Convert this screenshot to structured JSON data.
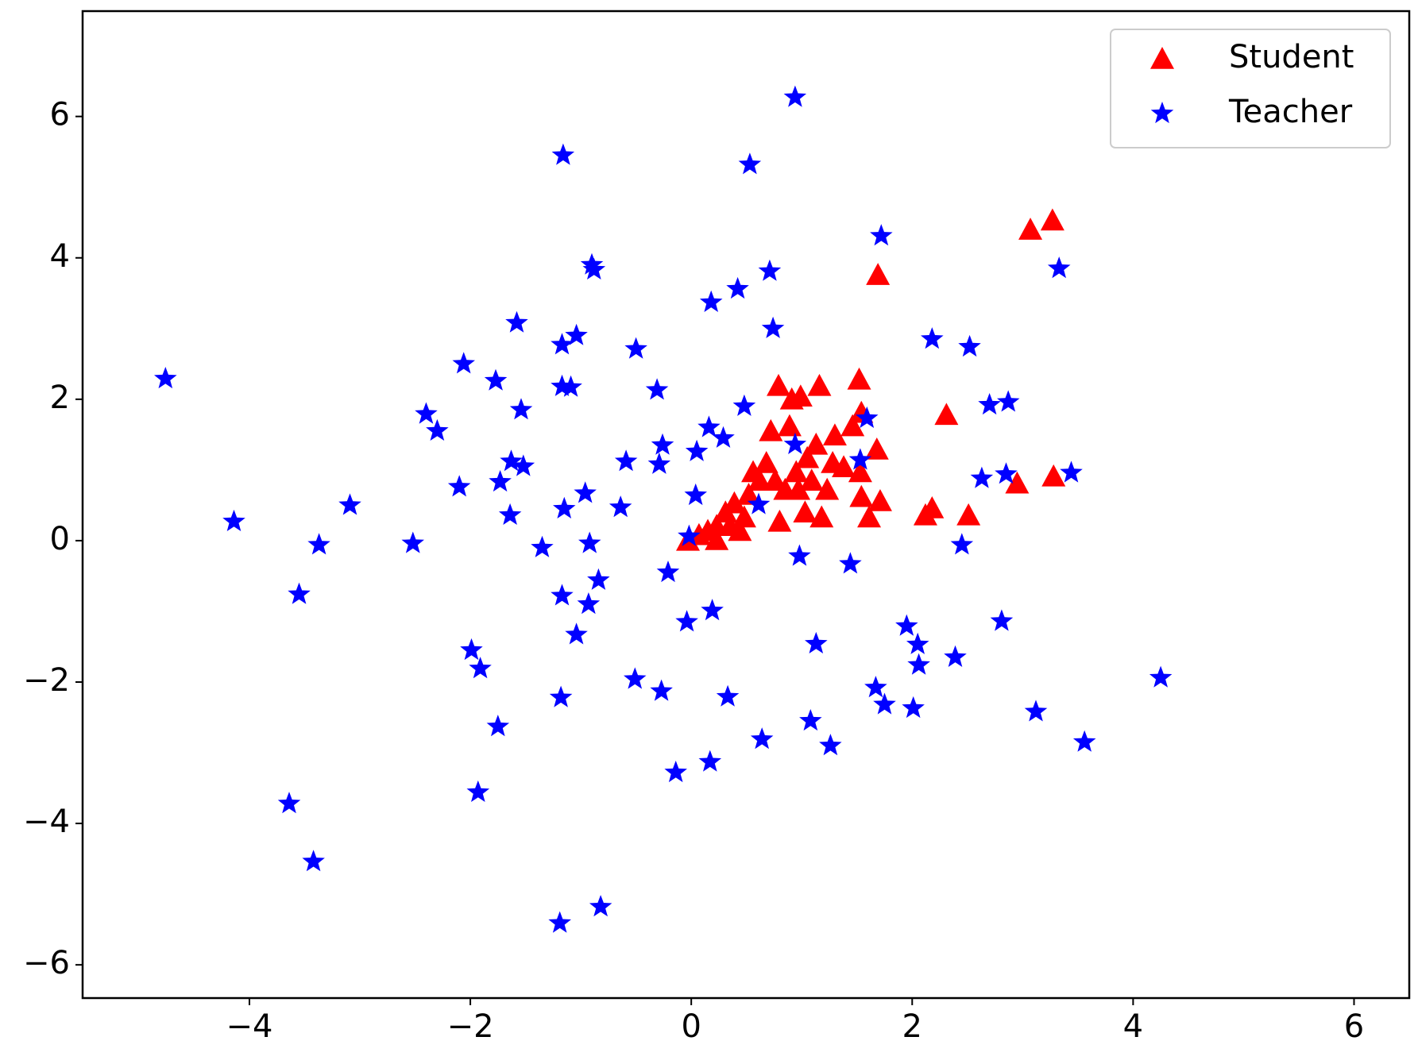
{
  "chart_data": {
    "type": "scatter",
    "xlim": [
      -5.51,
      6.5
    ],
    "ylim": [
      -6.47,
      7.49
    ],
    "xticks": [
      {
        "value": -4,
        "label": "−4"
      },
      {
        "value": -2,
        "label": "−2"
      },
      0,
      2,
      4,
      6
    ],
    "yticks": [
      {
        "value": -6,
        "label": "−6"
      },
      {
        "value": -4,
        "label": "−4"
      },
      {
        "value": -2,
        "label": "−2"
      },
      0,
      2,
      4,
      6
    ],
    "legend": "upper right",
    "series": [
      {
        "name": "Student",
        "color": "#ff0000",
        "marker": "triangle",
        "x": [
          -0.03,
          0.07,
          0.15,
          0.23,
          0.31,
          0.44,
          0.39,
          0.52,
          0.56,
          0.68,
          0.72,
          0.79,
          0.8,
          0.85,
          0.89,
          0.91,
          0.95,
          0.99,
          1.03,
          1.05,
          1.13,
          1.16,
          1.18,
          1.23,
          1.28,
          1.3,
          1.38,
          1.46,
          1.52,
          1.53,
          1.54,
          1.54,
          1.61,
          1.68,
          1.69,
          1.71,
          2.12,
          2.18,
          2.31,
          2.51,
          2.95,
          3.07,
          3.27,
          3.28,
          0.48,
          0.62,
          0.76,
          0.97,
          1.09,
          0.23,
          0.35
        ],
        "values": [
          0.0,
          0.08,
          0.14,
          0.21,
          0.4,
          0.14,
          0.53,
          0.65,
          0.97,
          1.1,
          1.55,
          2.19,
          0.27,
          0.72,
          1.62,
          2.0,
          0.97,
          2.04,
          0.4,
          1.17,
          1.36,
          2.19,
          0.33,
          0.72,
          1.1,
          1.49,
          1.04,
          1.62,
          2.28,
          0.97,
          1.81,
          0.62,
          0.33,
          1.29,
          3.76,
          0.56,
          0.36,
          0.46,
          1.78,
          0.36,
          0.81,
          4.4,
          4.53,
          0.91,
          0.33,
          0.85,
          0.85,
          0.72,
          0.85,
          0.01,
          0.21
        ]
      },
      {
        "name": "Teacher",
        "color": "#0000ff",
        "marker": "star",
        "x": [
          -4.76,
          -4.14,
          -3.64,
          -3.55,
          -3.42,
          -3.37,
          -3.09,
          -2.52,
          -2.4,
          -2.3,
          -2.1,
          -2.06,
          -1.99,
          -1.93,
          -1.91,
          -1.77,
          -1.75,
          -1.73,
          -1.64,
          -1.63,
          -1.58,
          -1.54,
          -1.52,
          -1.35,
          -1.19,
          -1.18,
          -1.17,
          -1.17,
          -1.16,
          -1.15,
          -1.17,
          -1.09,
          -1.04,
          -1.04,
          -0.96,
          -0.93,
          -0.92,
          -0.9,
          -0.88,
          -0.84,
          -0.82,
          -0.64,
          -0.59,
          -0.51,
          -0.5,
          -0.31,
          -0.27,
          -0.26,
          -0.29,
          -0.21,
          -0.14,
          -0.04,
          -0.02,
          0.04,
          0.05,
          0.16,
          0.17,
          0.18,
          0.19,
          0.29,
          0.33,
          0.42,
          0.48,
          0.53,
          0.61,
          0.64,
          0.71,
          0.74,
          0.94,
          0.94,
          0.98,
          1.08,
          1.13,
          1.26,
          1.44,
          1.53,
          1.59,
          1.67,
          1.72,
          1.75,
          1.95,
          2.01,
          2.05,
          2.06,
          2.18,
          2.39,
          2.45,
          2.52,
          2.63,
          2.7,
          2.81,
          2.85,
          2.87,
          3.12,
          3.33,
          3.44,
          3.56,
          4.25
        ],
        "values": [
          2.29,
          0.27,
          -3.72,
          -0.76,
          -4.54,
          -0.06,
          0.5,
          -0.04,
          1.79,
          1.55,
          0.76,
          2.5,
          -1.55,
          -3.56,
          -1.81,
          2.26,
          -2.63,
          0.83,
          0.36,
          1.12,
          3.08,
          1.85,
          1.05,
          -0.1,
          -5.41,
          -2.22,
          2.77,
          -0.78,
          5.45,
          0.45,
          2.18,
          2.17,
          -1.33,
          2.9,
          0.67,
          -0.9,
          -0.04,
          3.9,
          3.83,
          -0.56,
          -5.18,
          0.47,
          1.12,
          -1.96,
          2.71,
          2.13,
          -2.13,
          1.35,
          1.08,
          -0.45,
          -3.28,
          -1.15,
          0.06,
          0.64,
          1.26,
          1.6,
          -3.13,
          3.37,
          -0.99,
          1.45,
          -2.21,
          3.56,
          1.9,
          5.32,
          0.51,
          -2.81,
          3.81,
          3.0,
          6.27,
          1.36,
          -0.22,
          -2.55,
          -1.46,
          -2.9,
          -0.33,
          1.14,
          1.73,
          -2.08,
          4.31,
          -2.32,
          -1.21,
          -2.37,
          -1.47,
          -1.76,
          2.85,
          -1.65,
          -0.06,
          2.74,
          0.88,
          1.92,
          -1.14,
          0.94,
          1.96,
          -2.42,
          3.85,
          0.96,
          -2.85,
          -1.94
        ]
      }
    ]
  }
}
